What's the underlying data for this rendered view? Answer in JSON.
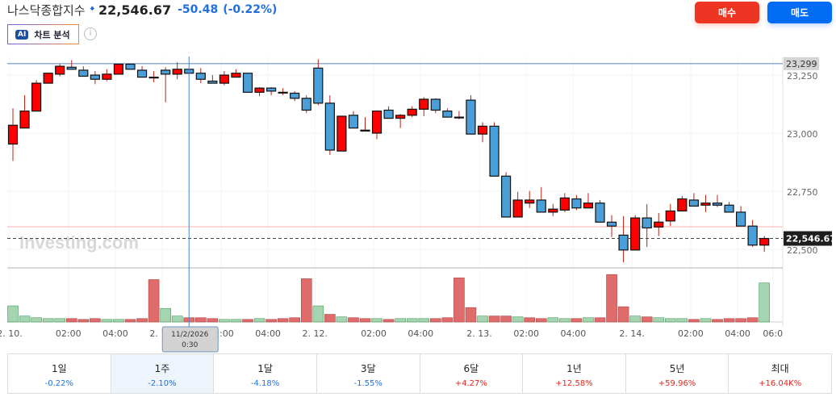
{
  "header": {
    "name": "나스닥종합지수",
    "direction_icon": "arrow-down-icon",
    "price": "22,546.67",
    "change": "-50.48",
    "change_pct": "(-0.22%)",
    "ai_badge": "AI",
    "ai_label": "차트 분석",
    "info_icon": "i"
  },
  "actions": {
    "buy": "매수",
    "sell": "매도"
  },
  "colors": {
    "up": "#ff0000",
    "down": "#4a9fd8",
    "buy": "#ee3524",
    "sell": "#006cf5",
    "vol_up": "#a5d4b0",
    "vol_down": "#e06b6b"
  },
  "chart_data": {
    "type": "candlestick",
    "watermark": "Investing.com",
    "ylim": [
      22420,
      23330
    ],
    "y_ticks": [
      "23,250",
      "23,000",
      "22,750",
      "22,500"
    ],
    "y_tick_values": [
      23250,
      23000,
      22750,
      22500
    ],
    "high_line": {
      "value": 23299,
      "label": "23,299"
    },
    "prev_close_line": 22597,
    "last": {
      "value": 22546.67,
      "label": "22,546.67"
    },
    "x_labels": [
      [
        "2. 10.",
        0
      ],
      [
        "02:00",
        5
      ],
      [
        "04:00",
        9
      ],
      [
        "2. 11.",
        13
      ],
      [
        "02:00",
        18
      ],
      [
        "04:00",
        22
      ],
      [
        "2. 12.",
        26
      ],
      [
        "02:00",
        31
      ],
      [
        "04:00",
        35
      ],
      [
        "2. 13.",
        40
      ],
      [
        "02:00",
        44
      ],
      [
        "04:00",
        48
      ],
      [
        "2. 14.",
        53
      ],
      [
        "02:00",
        58
      ],
      [
        "04:00",
        62
      ],
      [
        "06:0",
        65
      ]
    ],
    "crosshair": {
      "index": 15,
      "label_date": "11/2/2026",
      "label_time": "0:30"
    },
    "ohlc": [
      [
        22953,
        23107,
        22880,
        23034
      ],
      [
        23022,
        23163,
        23022,
        23095
      ],
      [
        23095,
        23228,
        23095,
        23215
      ],
      [
        23215,
        23258,
        23215,
        23258
      ],
      [
        23254,
        23297,
        23245,
        23288
      ],
      [
        23284,
        23314,
        23275,
        23275
      ],
      [
        23271,
        23288,
        23245,
        23245
      ],
      [
        23250,
        23267,
        23211,
        23232
      ],
      [
        23232,
        23275,
        23224,
        23254
      ],
      [
        23254,
        23297,
        23254,
        23297
      ],
      [
        23297,
        23297,
        23275,
        23275
      ],
      [
        23271,
        23288,
        23241,
        23241
      ],
      [
        23241,
        23267,
        23219,
        23241
      ],
      [
        23271,
        23284,
        23133,
        23254
      ],
      [
        23254,
        23305,
        23232,
        23275
      ],
      [
        23275,
        23275,
        23258,
        23258
      ],
      [
        23258,
        23280,
        23215,
        23232
      ],
      [
        23224,
        23250,
        23215,
        23215
      ],
      [
        23215,
        23267,
        23206,
        23250
      ],
      [
        23241,
        23275,
        23241,
        23258
      ],
      [
        23258,
        23258,
        23176,
        23176
      ],
      [
        23176,
        23198,
        23159,
        23194
      ],
      [
        23194,
        23198,
        23163,
        23181
      ],
      [
        23176,
        23194,
        23163,
        23174
      ],
      [
        23172,
        23181,
        23138,
        23150
      ],
      [
        23150,
        23163,
        23086,
        23099
      ],
      [
        23280,
        23318,
        23120,
        23129
      ],
      [
        23129,
        23163,
        22906,
        22927
      ],
      [
        22923,
        23073,
        22923,
        23073
      ],
      [
        23077,
        23095,
        23022,
        23022
      ],
      [
        23009,
        23069,
        23009,
        23013
      ],
      [
        23000,
        23095,
        22974,
        23095
      ],
      [
        23099,
        23116,
        23064,
        23064
      ],
      [
        23064,
        23082,
        23022,
        23077
      ],
      [
        23077,
        23116,
        23069,
        23103
      ],
      [
        23103,
        23155,
        23073,
        23146
      ],
      [
        23146,
        23150,
        23086,
        23099
      ],
      [
        23095,
        23107,
        23069,
        23069
      ],
      [
        23069,
        23095,
        23060,
        23069
      ],
      [
        23142,
        23163,
        22996,
        22996
      ],
      [
        22996,
        23047,
        22961,
        23030
      ],
      [
        23030,
        23047,
        22815,
        22815
      ],
      [
        22815,
        22832,
        22639,
        22639
      ],
      [
        22639,
        22747,
        22639,
        22712
      ],
      [
        22699,
        22751,
        22678,
        22712
      ],
      [
        22712,
        22768,
        22660,
        22660
      ],
      [
        22660,
        22695,
        22643,
        22673
      ],
      [
        22669,
        22742,
        22660,
        22721
      ],
      [
        22717,
        22734,
        22669,
        22678
      ],
      [
        22678,
        22742,
        22678,
        22699
      ],
      [
        22699,
        22712,
        22617,
        22617
      ],
      [
        22617,
        22647,
        22553,
        22600
      ],
      [
        22561,
        22643,
        22444,
        22497
      ],
      [
        22497,
        22647,
        22497,
        22635
      ],
      [
        22635,
        22695,
        22510,
        22592
      ],
      [
        22596,
        22656,
        22557,
        22617
      ],
      [
        22622,
        22695,
        22600,
        22665
      ],
      [
        22665,
        22729,
        22665,
        22717
      ],
      [
        22712,
        22742,
        22686,
        22686
      ],
      [
        22690,
        22734,
        22660,
        22699
      ],
      [
        22699,
        22734,
        22682,
        22690
      ],
      [
        22690,
        22704,
        22660,
        22660
      ],
      [
        22660,
        22686,
        22600,
        22600
      ],
      [
        22600,
        22626,
        22510,
        22518
      ],
      [
        22518,
        22557,
        22489,
        22546.67
      ]
    ],
    "volume": [
      19,
      7,
      5,
      4,
      4,
      4,
      3,
      4,
      3,
      3,
      3,
      4,
      50,
      16,
      7,
      5,
      5,
      4,
      3,
      3,
      3,
      4,
      3,
      4,
      5,
      51,
      19,
      9,
      6,
      5,
      4,
      4,
      3,
      4,
      4,
      4,
      4,
      5,
      52,
      17,
      7,
      7,
      7,
      6,
      5,
      4,
      5,
      4,
      4,
      5,
      5,
      56,
      18,
      7,
      6,
      5,
      4,
      4,
      3,
      4,
      3,
      4,
      4,
      5,
      46
    ],
    "volume_dir": "gggggrrrggrrrggrrrggrgrrrrgrgrrgrgggrrrrgrrgrrggrgrrrgrgggrgrrrrg"
  },
  "periods": [
    {
      "label": "1일",
      "value": "-0.22%",
      "sign": "neg"
    },
    {
      "label": "1주",
      "value": "-2.10%",
      "sign": "neg",
      "active": true
    },
    {
      "label": "1달",
      "value": "-4.18%",
      "sign": "neg"
    },
    {
      "label": "3달",
      "value": "-1.55%",
      "sign": "neg"
    },
    {
      "label": "6달",
      "value": "+4.27%",
      "sign": "pos"
    },
    {
      "label": "1년",
      "value": "+12.58%",
      "sign": "pos"
    },
    {
      "label": "5년",
      "value": "+59.96%",
      "sign": "pos"
    },
    {
      "label": "최대",
      "value": "+16.04K%",
      "sign": "pos"
    }
  ]
}
